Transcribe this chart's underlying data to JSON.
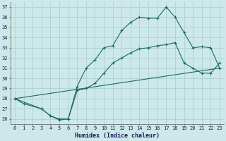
{
  "title": "",
  "xlabel": "Humidex (Indice chaleur)",
  "ylabel": "",
  "bg_color": "#cce8e8",
  "grid_color": "#aacccc",
  "line_color": "#1a6b5a",
  "ylim": [
    25.5,
    37.5
  ],
  "xlim": [
    -0.5,
    23.5
  ],
  "yticks": [
    26,
    27,
    28,
    29,
    30,
    31,
    32,
    33,
    34,
    35,
    36,
    37
  ],
  "xticks": [
    0,
    1,
    2,
    3,
    4,
    5,
    6,
    7,
    8,
    9,
    10,
    11,
    12,
    13,
    14,
    15,
    16,
    17,
    18,
    19,
    20,
    21,
    22,
    23
  ],
  "line1_x": [
    0,
    1,
    3,
    4,
    5,
    6,
    7,
    8,
    9,
    10,
    11,
    12,
    13,
    14,
    15,
    16,
    17,
    18,
    19,
    20,
    21,
    22,
    23
  ],
  "line1_y": [
    28.0,
    27.5,
    27.0,
    26.3,
    25.9,
    26.0,
    29.2,
    31.0,
    31.8,
    33.0,
    33.2,
    34.7,
    35.5,
    36.0,
    35.9,
    35.9,
    37.0,
    36.0,
    34.5,
    33.0,
    33.1,
    33.0,
    31.0
  ],
  "line2_x": [
    0,
    3,
    4,
    5,
    6,
    7,
    8,
    9,
    10,
    11,
    12,
    13,
    14,
    15,
    16,
    17,
    18,
    19,
    20,
    21,
    22,
    23
  ],
  "line2_y": [
    28.0,
    27.0,
    26.3,
    26.0,
    26.0,
    28.8,
    29.0,
    29.5,
    30.5,
    31.5,
    32.0,
    32.5,
    32.9,
    33.0,
    33.2,
    33.3,
    33.5,
    31.5,
    31.0,
    30.5,
    30.5,
    31.5
  ],
  "line3_x": [
    0,
    23
  ],
  "line3_y": [
    28.0,
    31.0
  ]
}
